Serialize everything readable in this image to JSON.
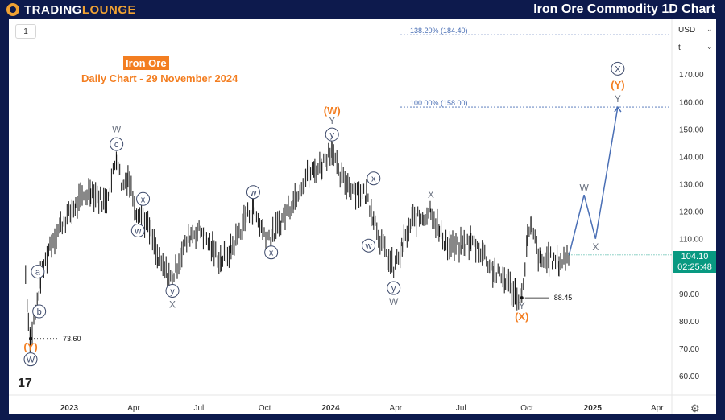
{
  "header": {
    "logo_prefix": "TRADING",
    "logo_suffix": "LOUNGE",
    "title": "Iron Ore Commodity 1D Chart"
  },
  "toolbar": {
    "interval": "1",
    "currency": "USD",
    "unit": "t"
  },
  "annotation": {
    "instrument": "Iron Ore",
    "subtitle": "Daily Chart - 29 November 2024"
  },
  "price_tag": {
    "price": "104.10",
    "countdown": "02:25:48"
  },
  "colors": {
    "background": "#ffffff",
    "frame": "#0d1a4d",
    "wave": "#5a6b8c",
    "accent": "#f37e21",
    "projection": "#4a6fb5",
    "price_tag": "#089981"
  },
  "chart_data": {
    "type": "line",
    "title": "Iron Ore Commodity 1D Chart",
    "ylim": [
      53,
      190
    ],
    "y_ticks": [
      "60.00",
      "70.00",
      "80.00",
      "90.00",
      "100.00",
      "110.00",
      "120.00",
      "130.00",
      "140.00",
      "150.00",
      "160.00",
      "170.00"
    ],
    "x_ticks": [
      "2023",
      "Apr",
      "Jul",
      "Oct",
      "2024",
      "Apr",
      "Jul",
      "Oct",
      "2025",
      "Apr"
    ],
    "x_tick_dates": [
      "2023-01-01",
      "2023-04-01",
      "2023-07-01",
      "2023-10-01",
      "2024-01-01",
      "2024-04-01",
      "2024-07-01",
      "2024-10-01",
      "2025-01-01",
      "2025-04-01"
    ],
    "series": [
      {
        "values_approx": [
          [
            "2022-11-01",
            97
          ],
          [
            "2022-11-05",
            80
          ],
          [
            "2022-11-08",
            73.6
          ],
          [
            "2022-11-15",
            83
          ],
          [
            "2022-11-22",
            95
          ],
          [
            "2022-12-05",
            108
          ],
          [
            "2022-12-20",
            115
          ],
          [
            "2023-01-10",
            122
          ],
          [
            "2023-01-31",
            128
          ],
          [
            "2023-02-20",
            123
          ],
          [
            "2023-03-01",
            131
          ],
          [
            "2023-03-08",
            140
          ],
          [
            "2023-03-16",
            129
          ],
          [
            "2023-03-24",
            133
          ],
          [
            "2023-04-05",
            120
          ],
          [
            "2023-04-14",
            118
          ],
          [
            "2023-04-25",
            112
          ],
          [
            "2023-05-05",
            102
          ],
          [
            "2023-05-18",
            97
          ],
          [
            "2023-05-25",
            95
          ],
          [
            "2023-06-05",
            104
          ],
          [
            "2023-06-20",
            112
          ],
          [
            "2023-07-05",
            113
          ],
          [
            "2023-07-20",
            106
          ],
          [
            "2023-08-01",
            102
          ],
          [
            "2023-08-15",
            106
          ],
          [
            "2023-09-05",
            118
          ],
          [
            "2023-09-15",
            121
          ],
          [
            "2023-09-28",
            113
          ],
          [
            "2023-10-10",
            110
          ],
          [
            "2023-10-25",
            117
          ],
          [
            "2023-11-10",
            124
          ],
          [
            "2023-11-25",
            132
          ],
          [
            "2023-12-10",
            135
          ],
          [
            "2023-12-20",
            137
          ],
          [
            "2024-01-03",
            143.5
          ],
          [
            "2024-01-12",
            133
          ],
          [
            "2024-01-25",
            130
          ],
          [
            "2024-02-05",
            128
          ],
          [
            "2024-02-20",
            126
          ],
          [
            "2024-03-01",
            118
          ],
          [
            "2024-03-10",
            110
          ],
          [
            "2024-03-20",
            103
          ],
          [
            "2024-03-29",
            99
          ],
          [
            "2024-04-10",
            107
          ],
          [
            "2024-04-25",
            117
          ],
          [
            "2024-05-10",
            118
          ],
          [
            "2024-05-20",
            121
          ],
          [
            "2024-06-01",
            112
          ],
          [
            "2024-06-15",
            107
          ],
          [
            "2024-07-01",
            107
          ],
          [
            "2024-07-15",
            109
          ],
          [
            "2024-08-01",
            105
          ],
          [
            "2024-08-15",
            98
          ],
          [
            "2024-09-01",
            95
          ],
          [
            "2024-09-15",
            90
          ],
          [
            "2024-09-24",
            88.45
          ],
          [
            "2024-10-02",
            110
          ],
          [
            "2024-10-08",
            114
          ],
          [
            "2024-10-20",
            101
          ],
          [
            "2024-11-01",
            103
          ],
          [
            "2024-11-15",
            101
          ],
          [
            "2024-11-29",
            104.1
          ]
        ]
      }
    ],
    "projection": [
      [
        "2024-11-29",
        104.1
      ],
      [
        "2024-12-20",
        126
      ],
      [
        "2025-01-05",
        110
      ],
      [
        "2025-02-05",
        158
      ]
    ],
    "fib_levels": [
      {
        "label": "138.20% (184.40)",
        "value": 184.4
      },
      {
        "label": "100.00% (158.00)",
        "value": 158
      }
    ],
    "price_markers": [
      {
        "label": "73.60",
        "value": 73.6,
        "date": "2022-11-08"
      },
      {
        "label": "88.45",
        "value": 88.45,
        "date": "2024-09-24"
      }
    ],
    "wave_labels": [
      {
        "text": "(Y)",
        "date": "2022-11-08",
        "value": 70.5,
        "style": "orange"
      },
      {
        "text": "W",
        "date": "2022-11-08",
        "value": 66,
        "style": "circled"
      },
      {
        "text": "b",
        "date": "2022-11-20",
        "value": 83.5,
        "style": "circled"
      },
      {
        "text": "a",
        "date": "2022-11-18",
        "value": 98,
        "style": "circled"
      },
      {
        "text": "c",
        "date": "2023-03-08",
        "value": 144.5,
        "style": "circled"
      },
      {
        "text": "W",
        "date": "2023-03-08",
        "value": 150,
        "style": "plain"
      },
      {
        "text": "x",
        "date": "2023-04-14",
        "value": 124.5,
        "style": "circled"
      },
      {
        "text": "w",
        "date": "2023-04-07",
        "value": 113,
        "style": "circled"
      },
      {
        "text": "y",
        "date": "2023-05-25",
        "value": 91,
        "style": "circled"
      },
      {
        "text": "X",
        "date": "2023-05-25",
        "value": 86,
        "style": "plain"
      },
      {
        "text": "w",
        "date": "2023-09-15",
        "value": 127,
        "style": "circled"
      },
      {
        "text": "x",
        "date": "2023-10-10",
        "value": 105,
        "style": "circled"
      },
      {
        "text": "y",
        "date": "2024-01-03",
        "value": 148,
        "style": "circled"
      },
      {
        "text": "Y",
        "date": "2024-01-03",
        "value": 153,
        "style": "plain"
      },
      {
        "text": "(W)",
        "date": "2024-01-03",
        "value": 156.5,
        "style": "orange"
      },
      {
        "text": "x",
        "date": "2024-03-01",
        "value": 132,
        "style": "circled"
      },
      {
        "text": "w",
        "date": "2024-02-23",
        "value": 107.5,
        "style": "circled"
      },
      {
        "text": "y",
        "date": "2024-03-29",
        "value": 92,
        "style": "circled"
      },
      {
        "text": "W",
        "date": "2024-03-29",
        "value": 87,
        "style": "plain"
      },
      {
        "text": "X",
        "date": "2024-05-20",
        "value": 126,
        "style": "plain"
      },
      {
        "text": "Y",
        "date": "2024-09-24",
        "value": 85.5,
        "style": "plain"
      },
      {
        "text": "(X)",
        "date": "2024-09-24",
        "value": 81.5,
        "style": "orange"
      },
      {
        "text": "W",
        "date": "2024-12-20",
        "value": 128.5,
        "style": "plain"
      },
      {
        "text": "X",
        "date": "2025-01-05",
        "value": 107,
        "style": "plain"
      },
      {
        "text": "Y",
        "date": "2025-02-05",
        "value": 161,
        "style": "plain"
      },
      {
        "text": "(Y)",
        "date": "2025-02-05",
        "value": 166,
        "style": "orange"
      },
      {
        "text": "X",
        "date": "2025-02-05",
        "value": 172,
        "style": "circled"
      }
    ]
  }
}
